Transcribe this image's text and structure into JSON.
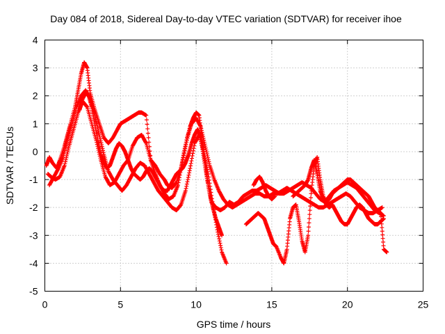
{
  "chart_data": {
    "type": "scatter",
    "title": "Day 084 of 2018, Sidereal Day-to-day VTEC variation (SDTVAR) for receiver ihoe",
    "xlabel": "GPS time / hours",
    "ylabel": "SDTVAR / TECUs",
    "xlim": [
      0,
      25
    ],
    "ylim": [
      -5,
      4
    ],
    "xticks": [
      0,
      5,
      10,
      15,
      20,
      25
    ],
    "yticks": [
      -5,
      -4,
      -3,
      -2,
      -1,
      0,
      1,
      2,
      3,
      4
    ],
    "grid": true,
    "marker": "+",
    "color": "#ff0000",
    "series": [
      {
        "name": "s1",
        "x": [
          0.1,
          0.3,
          0.5,
          0.8,
          1.0,
          1.3,
          1.5,
          1.7,
          2.0,
          2.2,
          2.4,
          2.6,
          2.8,
          3.0,
          3.3,
          3.6,
          3.9,
          4.2,
          4.5,
          4.8,
          5.0,
          5.3,
          5.6,
          5.9,
          6.2,
          6.4,
          6.7,
          7.0,
          7.3,
          7.6,
          7.9,
          8.1,
          8.4,
          8.7,
          9.0,
          9.3,
          9.6,
          9.8,
          10.0,
          10.2,
          10.4,
          10.6,
          10.8,
          11.0,
          11.3,
          11.6,
          11.9,
          12.2,
          12.5,
          12.8,
          13.1,
          13.4,
          13.7,
          14.0,
          14.3,
          14.6,
          14.9,
          15.2,
          15.5,
          15.8,
          16.1,
          16.4,
          16.7,
          17.0,
          17.3,
          17.6,
          17.9,
          18.2,
          18.5,
          18.8,
          19.1,
          19.4,
          19.7,
          20.0,
          20.3,
          20.6,
          20.9,
          21.2,
          21.5,
          21.8,
          22.1,
          22.4
        ],
        "y": [
          -0.5,
          -0.2,
          -0.4,
          -0.6,
          -0.3,
          0.2,
          0.6,
          1.0,
          1.6,
          2.2,
          2.8,
          3.2,
          3.0,
          2.1,
          1.5,
          1.0,
          0.5,
          0.3,
          0.5,
          0.8,
          1.0,
          1.1,
          1.2,
          1.3,
          1.4,
          1.4,
          1.3,
          -0.3,
          -0.5,
          -0.8,
          -1.0,
          -1.2,
          -1.3,
          -1.1,
          -0.6,
          0.2,
          0.9,
          1.2,
          1.4,
          1.3,
          0.4,
          -0.4,
          -1.2,
          -1.8,
          -2.0,
          -2.1,
          -2.0,
          -1.8,
          -1.9,
          -1.8,
          -1.6,
          -1.5,
          -1.4,
          -1.4,
          -1.3,
          -1.2,
          -1.3,
          -1.4,
          -1.5,
          -1.5,
          -1.4,
          -1.3,
          -1.2,
          -1.1,
          -1.2,
          -1.3,
          -1.5,
          -1.7,
          -1.8,
          -1.6,
          -1.4,
          -1.3,
          -1.2,
          -1.1,
          -1.2,
          -1.3,
          -1.5,
          -1.7,
          -1.9,
          -2.1,
          -2.2,
          -2.3
        ]
      },
      {
        "name": "s2",
        "x": [
          0.2,
          0.4,
          0.7,
          1.0,
          1.3,
          1.6,
          1.9,
          2.2,
          2.5,
          2.8,
          3.1,
          3.4,
          3.7,
          4.0,
          4.3,
          4.6,
          4.9,
          5.2,
          5.5,
          5.8,
          6.1,
          6.4,
          6.7,
          7.0,
          7.3,
          7.6,
          7.9,
          8.2,
          8.5,
          8.8,
          9.1,
          9.4,
          9.7,
          10.0,
          10.3,
          10.6,
          10.9,
          11.2,
          11.5,
          11.8,
          12.1,
          12.4,
          12.7,
          13.0,
          13.3,
          13.6,
          13.9,
          14.2,
          14.5,
          14.8,
          15.1,
          15.4,
          15.7,
          16.0,
          16.3,
          16.6,
          16.9,
          17.2,
          17.5,
          17.8,
          18.1,
          18.4,
          18.7,
          19.0,
          19.3,
          19.6,
          19.9,
          20.2,
          20.5,
          20.8,
          21.1,
          21.4,
          21.7,
          22.0,
          22.3
        ],
        "y": [
          -0.8,
          -0.9,
          -1.0,
          -0.9,
          -0.5,
          0.2,
          0.8,
          1.4,
          1.8,
          1.6,
          1.0,
          0.4,
          -0.3,
          -0.9,
          -1.2,
          -1.1,
          -0.8,
          -0.5,
          -0.3,
          0.2,
          0.5,
          0.6,
          0.3,
          -0.3,
          -0.8,
          -1.2,
          -1.5,
          -1.7,
          -1.6,
          -1.2,
          -0.3,
          0.5,
          1.0,
          1.2,
          0.9,
          0.2,
          -0.5,
          -1.0,
          -1.4,
          -1.7,
          -1.9,
          -2.0,
          -1.9,
          -1.8,
          -1.7,
          -1.6,
          -1.5,
          -1.5,
          -1.6,
          -1.6,
          -1.5,
          -1.5,
          -1.4,
          -1.3,
          -1.4,
          -1.5,
          -1.6,
          -1.7,
          -1.8,
          -1.9,
          -2.0,
          -2.0,
          -1.9,
          -1.8,
          -1.7,
          -1.6,
          -1.5,
          -1.6,
          -1.8,
          -2.0,
          -2.1,
          -2.2,
          -2.2,
          -2.1,
          -2.0
        ]
      },
      {
        "name": "s3",
        "x": [
          0.3,
          0.6,
          0.9,
          1.2,
          1.5,
          1.8,
          2.1,
          2.4,
          2.7,
          3.0,
          3.3,
          3.6,
          3.9,
          4.2,
          4.5,
          4.8,
          5.1,
          5.4,
          5.7,
          6.0,
          6.3,
          6.6,
          6.9,
          7.2,
          7.5,
          7.8,
          8.1,
          8.4,
          8.7,
          9.0,
          9.3,
          9.6,
          9.9,
          10.2,
          10.5,
          10.8,
          11.1,
          11.4,
          11.7,
          12.0
        ],
        "y": [
          -1.2,
          -0.9,
          -0.6,
          -0.2,
          0.4,
          1.0,
          1.6,
          2.0,
          2.2,
          1.9,
          1.3,
          0.6,
          -0.1,
          -0.7,
          -1.0,
          -1.2,
          -1.4,
          -1.2,
          -0.9,
          -0.6,
          -0.4,
          -0.5,
          -0.8,
          -1.1,
          -1.4,
          -1.6,
          -1.8,
          -2.0,
          -2.1,
          -1.9,
          -1.4,
          -0.6,
          0.3,
          0.6,
          0.0,
          -0.8,
          -1.9,
          -2.8,
          -3.6,
          -4.0
        ]
      },
      {
        "name": "s4",
        "x": [
          2.3,
          2.5,
          2.7,
          2.9,
          3.1,
          3.3,
          3.5,
          3.7,
          3.9,
          4.1,
          4.3,
          4.5,
          4.7,
          4.9,
          5.1,
          5.3,
          5.5,
          5.7,
          5.9,
          6.1,
          6.3,
          6.5,
          6.7,
          6.9,
          7.1,
          7.3,
          7.5,
          7.7,
          7.9,
          8.1,
          8.3,
          8.5,
          8.7,
          8.9,
          9.1,
          9.3,
          9.5,
          9.7,
          9.9,
          10.1,
          10.3,
          10.5,
          10.7,
          10.9,
          11.1,
          11.3,
          11.5,
          11.7
        ],
        "y": [
          1.5,
          1.9,
          2.1,
          2.0,
          1.6,
          1.0,
          0.4,
          -0.1,
          -0.4,
          -0.6,
          -0.5,
          -0.2,
          0.1,
          0.3,
          0.2,
          0.0,
          -0.3,
          -0.6,
          -0.8,
          -0.9,
          -1.0,
          -0.9,
          -0.7,
          -0.6,
          -0.7,
          -0.9,
          -1.1,
          -1.3,
          -1.4,
          -1.4,
          -1.2,
          -1.0,
          -0.8,
          -0.7,
          -0.6,
          -0.4,
          -0.1,
          0.3,
          0.6,
          0.8,
          0.5,
          -0.2,
          -0.9,
          -1.5,
          -2.0,
          -2.4,
          -2.7,
          -3.0
        ]
      },
      {
        "name": "s5",
        "x": [
          13.3,
          13.5,
          13.7,
          13.9,
          14.1,
          14.3,
          14.5,
          14.7,
          14.9,
          15.1,
          15.3,
          15.6,
          15.8,
          16.0,
          16.2,
          16.4,
          16.6,
          16.8,
          17.0,
          17.2,
          17.4,
          17.6,
          17.8,
          18.0,
          18.2,
          18.4,
          18.6,
          18.8,
          19.0,
          19.2,
          19.4,
          19.6,
          19.8,
          20.0,
          20.2,
          20.4,
          20.6,
          20.8,
          21.0,
          21.2,
          21.4,
          21.6,
          21.8,
          22.0,
          22.2,
          22.4
        ],
        "y": [
          -2.6,
          -2.5,
          -2.4,
          -2.3,
          -2.2,
          -2.3,
          -2.4,
          -2.7,
          -3.0,
          -3.3,
          -3.4,
          -3.8,
          -4.0,
          -3.5,
          -2.4,
          -2.0,
          -1.9,
          -2.5,
          -3.2,
          -3.6,
          -3.0,
          -1.5,
          -0.5,
          -0.2,
          -1.0,
          -1.6,
          -1.9,
          -2.0,
          -1.9,
          -2.1,
          -2.3,
          -2.5,
          -2.6,
          -2.6,
          -2.4,
          -2.2,
          -2.0,
          -1.9,
          -2.0,
          -2.2,
          -2.4,
          -2.5,
          -2.6,
          -2.6,
          -2.5,
          -2.4
        ]
      },
      {
        "name": "s6",
        "x": [
          13.8,
          14.0,
          14.2,
          14.4,
          14.6,
          14.8,
          15.0,
          15.2,
          16.4,
          16.6,
          16.8,
          17.0,
          17.2,
          17.4,
          17.6,
          17.8,
          18.0,
          18.2,
          18.4,
          18.6,
          18.8,
          19.0,
          19.2,
          19.4,
          19.6,
          19.8,
          20.0,
          20.2,
          20.4,
          20.6,
          20.8,
          21.0,
          21.2,
          21.4,
          21.6,
          21.8,
          22.0,
          22.2,
          22.4,
          22.6
        ],
        "y": [
          -1.2,
          -1.0,
          -0.9,
          -1.1,
          -1.4,
          -1.6,
          -1.7,
          -1.6,
          -1.6,
          -1.5,
          -1.4,
          -1.3,
          -1.2,
          -1.0,
          -0.6,
          -0.3,
          -0.8,
          -1.4,
          -1.7,
          -1.8,
          -1.7,
          -1.5,
          -1.4,
          -1.3,
          -1.2,
          -1.1,
          -1.0,
          -1.0,
          -1.1,
          -1.2,
          -1.3,
          -1.4,
          -1.5,
          -1.6,
          -1.8,
          -2.0,
          -2.1,
          -2.2,
          -3.5,
          -3.6
        ]
      }
    ]
  }
}
